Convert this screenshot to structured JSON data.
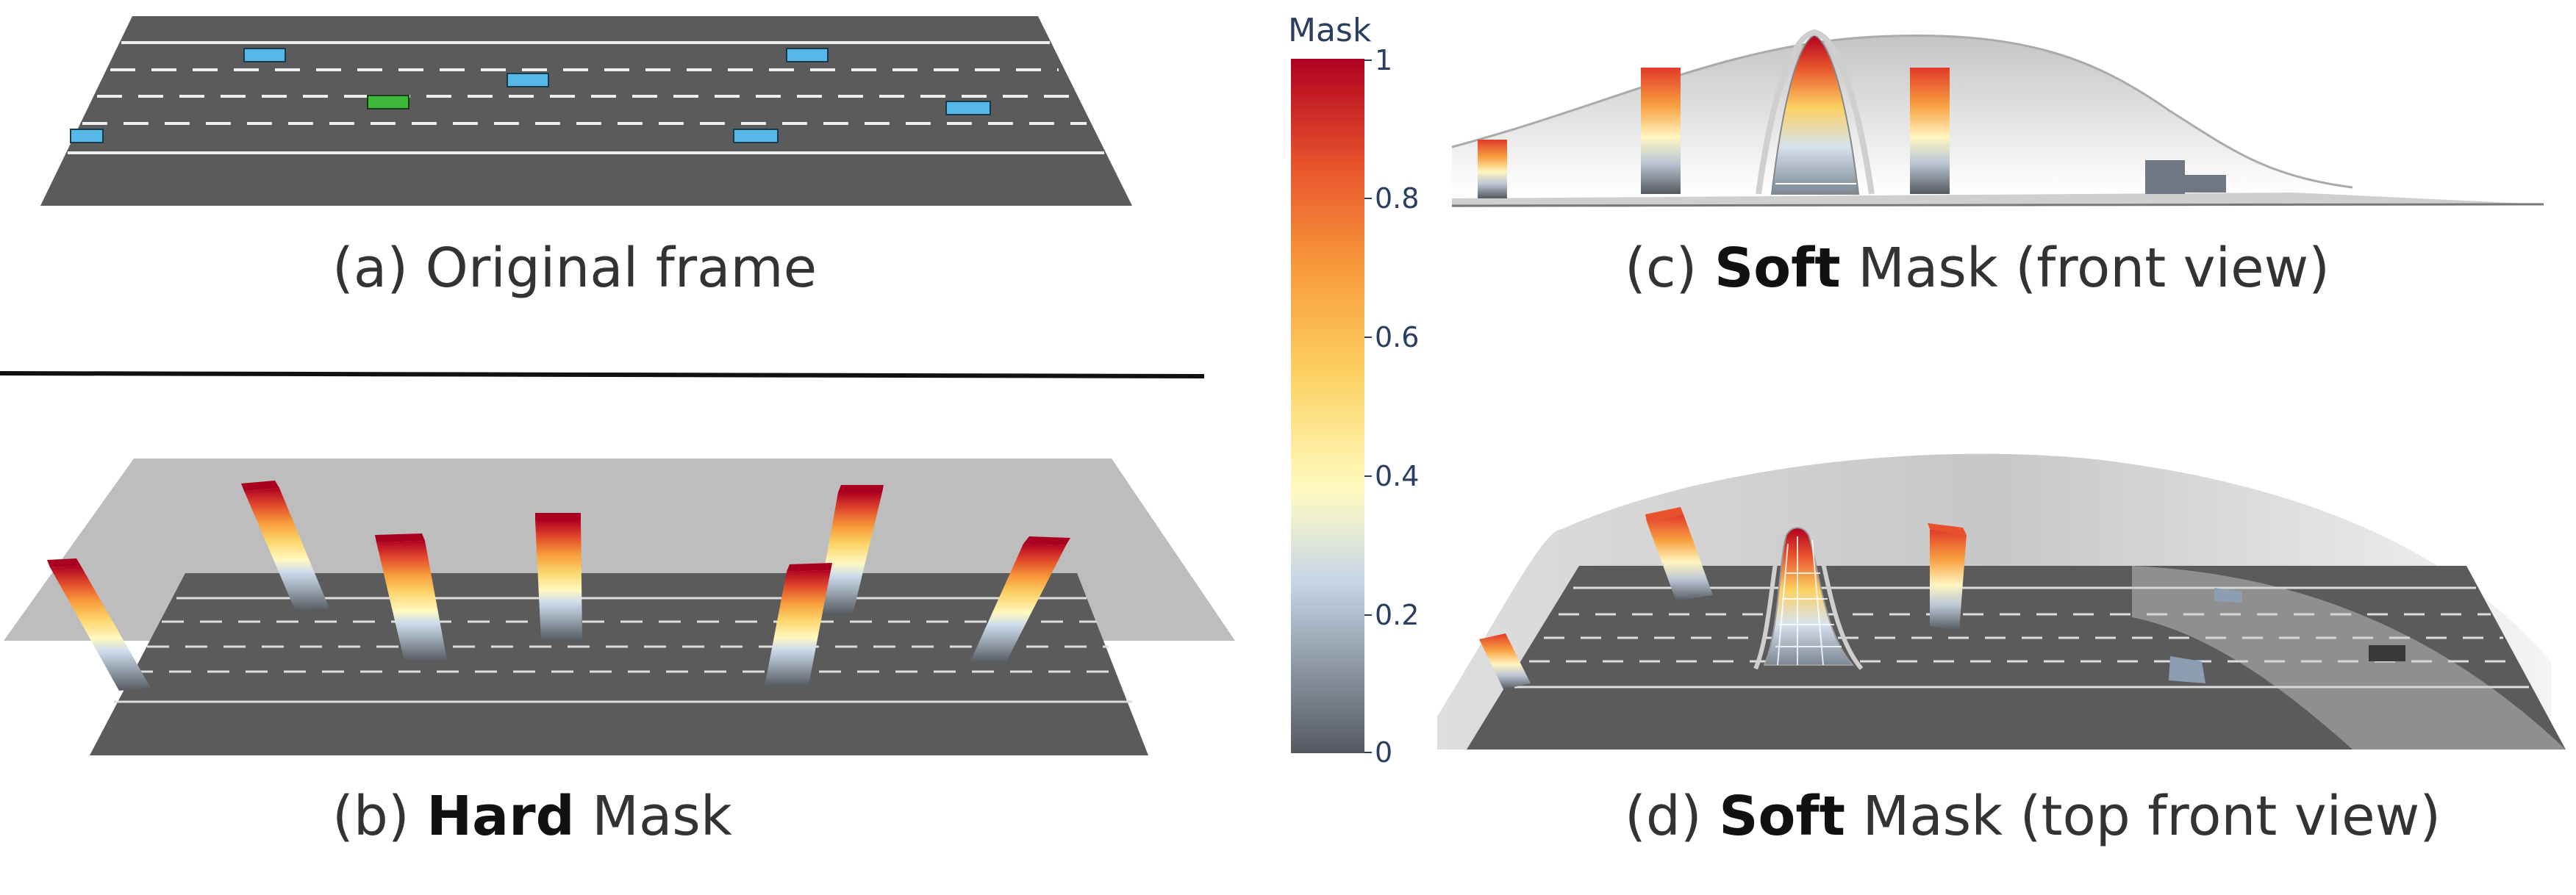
{
  "captions": {
    "a": {
      "prefix": "(a) Original frame"
    },
    "b": {
      "prefix": "(b) ",
      "bold": "Hard",
      "suffix": " Mask"
    },
    "c": {
      "prefix": "(c) ",
      "bold": "Soft",
      "suffix": " Mask (front view)"
    },
    "d": {
      "prefix": "(d) ",
      "bold": "Soft",
      "suffix": " Mask (top front view)"
    }
  },
  "colorbar": {
    "title": "Mask",
    "ticks": [
      "1",
      "0.8",
      "0.6",
      "0.4",
      "0.2",
      "0"
    ],
    "stops": [
      "#55595f",
      "#8a95a0",
      "#c8d6e8",
      "#fffbc0",
      "#fcd060",
      "#f79a3a",
      "#e8512c",
      "#c80e2a",
      "#b00022"
    ]
  },
  "colors": {
    "road": "#5b5b5b",
    "lane_line": "#eeeeee",
    "vehicle": "#55b8e8",
    "ego_vehicle": "#3db83a",
    "plane": "#bdbdbd"
  }
}
